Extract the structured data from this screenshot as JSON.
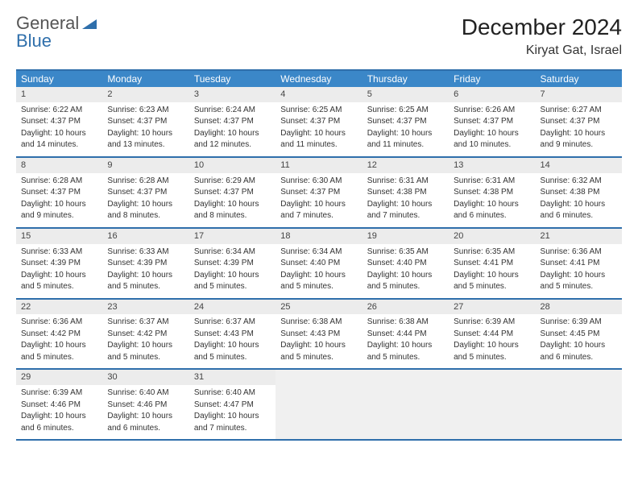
{
  "brand": {
    "part1": "General",
    "part2": "Blue"
  },
  "header": {
    "month_title": "December 2024",
    "location": "Kiryat Gat, Israel"
  },
  "colors": {
    "header_bar": "#3b87c8",
    "rule": "#2f6fab",
    "daynum_bg": "#ececec",
    "empty_bg": "#f0f0f0",
    "text": "#333333",
    "title": "#222222"
  },
  "weekdays": [
    "Sunday",
    "Monday",
    "Tuesday",
    "Wednesday",
    "Thursday",
    "Friday",
    "Saturday"
  ],
  "weeks": [
    [
      {
        "n": "1",
        "sunrise": "6:22 AM",
        "sunset": "4:37 PM",
        "day_h": "10",
        "day_m": "14"
      },
      {
        "n": "2",
        "sunrise": "6:23 AM",
        "sunset": "4:37 PM",
        "day_h": "10",
        "day_m": "13"
      },
      {
        "n": "3",
        "sunrise": "6:24 AM",
        "sunset": "4:37 PM",
        "day_h": "10",
        "day_m": "12"
      },
      {
        "n": "4",
        "sunrise": "6:25 AM",
        "sunset": "4:37 PM",
        "day_h": "10",
        "day_m": "11"
      },
      {
        "n": "5",
        "sunrise": "6:25 AM",
        "sunset": "4:37 PM",
        "day_h": "10",
        "day_m": "11"
      },
      {
        "n": "6",
        "sunrise": "6:26 AM",
        "sunset": "4:37 PM",
        "day_h": "10",
        "day_m": "10"
      },
      {
        "n": "7",
        "sunrise": "6:27 AM",
        "sunset": "4:37 PM",
        "day_h": "10",
        "day_m": "9"
      }
    ],
    [
      {
        "n": "8",
        "sunrise": "6:28 AM",
        "sunset": "4:37 PM",
        "day_h": "10",
        "day_m": "9"
      },
      {
        "n": "9",
        "sunrise": "6:28 AM",
        "sunset": "4:37 PM",
        "day_h": "10",
        "day_m": "8"
      },
      {
        "n": "10",
        "sunrise": "6:29 AM",
        "sunset": "4:37 PM",
        "day_h": "10",
        "day_m": "8"
      },
      {
        "n": "11",
        "sunrise": "6:30 AM",
        "sunset": "4:37 PM",
        "day_h": "10",
        "day_m": "7"
      },
      {
        "n": "12",
        "sunrise": "6:31 AM",
        "sunset": "4:38 PM",
        "day_h": "10",
        "day_m": "7"
      },
      {
        "n": "13",
        "sunrise": "6:31 AM",
        "sunset": "4:38 PM",
        "day_h": "10",
        "day_m": "6"
      },
      {
        "n": "14",
        "sunrise": "6:32 AM",
        "sunset": "4:38 PM",
        "day_h": "10",
        "day_m": "6"
      }
    ],
    [
      {
        "n": "15",
        "sunrise": "6:33 AM",
        "sunset": "4:39 PM",
        "day_h": "10",
        "day_m": "5"
      },
      {
        "n": "16",
        "sunrise": "6:33 AM",
        "sunset": "4:39 PM",
        "day_h": "10",
        "day_m": "5"
      },
      {
        "n": "17",
        "sunrise": "6:34 AM",
        "sunset": "4:39 PM",
        "day_h": "10",
        "day_m": "5"
      },
      {
        "n": "18",
        "sunrise": "6:34 AM",
        "sunset": "4:40 PM",
        "day_h": "10",
        "day_m": "5"
      },
      {
        "n": "19",
        "sunrise": "6:35 AM",
        "sunset": "4:40 PM",
        "day_h": "10",
        "day_m": "5"
      },
      {
        "n": "20",
        "sunrise": "6:35 AM",
        "sunset": "4:41 PM",
        "day_h": "10",
        "day_m": "5"
      },
      {
        "n": "21",
        "sunrise": "6:36 AM",
        "sunset": "4:41 PM",
        "day_h": "10",
        "day_m": "5"
      }
    ],
    [
      {
        "n": "22",
        "sunrise": "6:36 AM",
        "sunset": "4:42 PM",
        "day_h": "10",
        "day_m": "5"
      },
      {
        "n": "23",
        "sunrise": "6:37 AM",
        "sunset": "4:42 PM",
        "day_h": "10",
        "day_m": "5"
      },
      {
        "n": "24",
        "sunrise": "6:37 AM",
        "sunset": "4:43 PM",
        "day_h": "10",
        "day_m": "5"
      },
      {
        "n": "25",
        "sunrise": "6:38 AM",
        "sunset": "4:43 PM",
        "day_h": "10",
        "day_m": "5"
      },
      {
        "n": "26",
        "sunrise": "6:38 AM",
        "sunset": "4:44 PM",
        "day_h": "10",
        "day_m": "5"
      },
      {
        "n": "27",
        "sunrise": "6:39 AM",
        "sunset": "4:44 PM",
        "day_h": "10",
        "day_m": "5"
      },
      {
        "n": "28",
        "sunrise": "6:39 AM",
        "sunset": "4:45 PM",
        "day_h": "10",
        "day_m": "6"
      }
    ],
    [
      {
        "n": "29",
        "sunrise": "6:39 AM",
        "sunset": "4:46 PM",
        "day_h": "10",
        "day_m": "6"
      },
      {
        "n": "30",
        "sunrise": "6:40 AM",
        "sunset": "4:46 PM",
        "day_h": "10",
        "day_m": "6"
      },
      {
        "n": "31",
        "sunrise": "6:40 AM",
        "sunset": "4:47 PM",
        "day_h": "10",
        "day_m": "7"
      },
      null,
      null,
      null,
      null
    ]
  ],
  "labels": {
    "sunrise_prefix": "Sunrise: ",
    "sunset_prefix": "Sunset: ",
    "daylight_prefix": "Daylight: ",
    "hours_word": " hours",
    "and_word": "and ",
    "minutes_word": " minutes."
  }
}
